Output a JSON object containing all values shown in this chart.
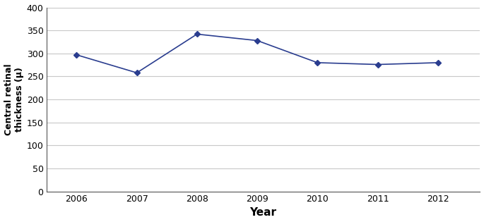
{
  "years": [
    2006,
    2007,
    2008,
    2009,
    2010,
    2011,
    2012
  ],
  "values": [
    297,
    258,
    342,
    328,
    280,
    276,
    280
  ],
  "line_color": "#2a3d8f",
  "marker_style": "D",
  "marker_size": 4,
  "line_width": 1.2,
  "xlabel": "Year",
  "ylabel": "Central retinal\nthickness (μ)",
  "ylim": [
    0,
    400
  ],
  "yticks": [
    0,
    50,
    100,
    150,
    200,
    250,
    300,
    350,
    400
  ],
  "xlim_left": 2005.5,
  "xlim_right": 2012.7,
  "grid_color": "#c8c8c8",
  "background_color": "#ffffff",
  "xlabel_fontsize": 11,
  "ylabel_fontsize": 9,
  "tick_fontsize": 9,
  "spine_color": "#555555"
}
